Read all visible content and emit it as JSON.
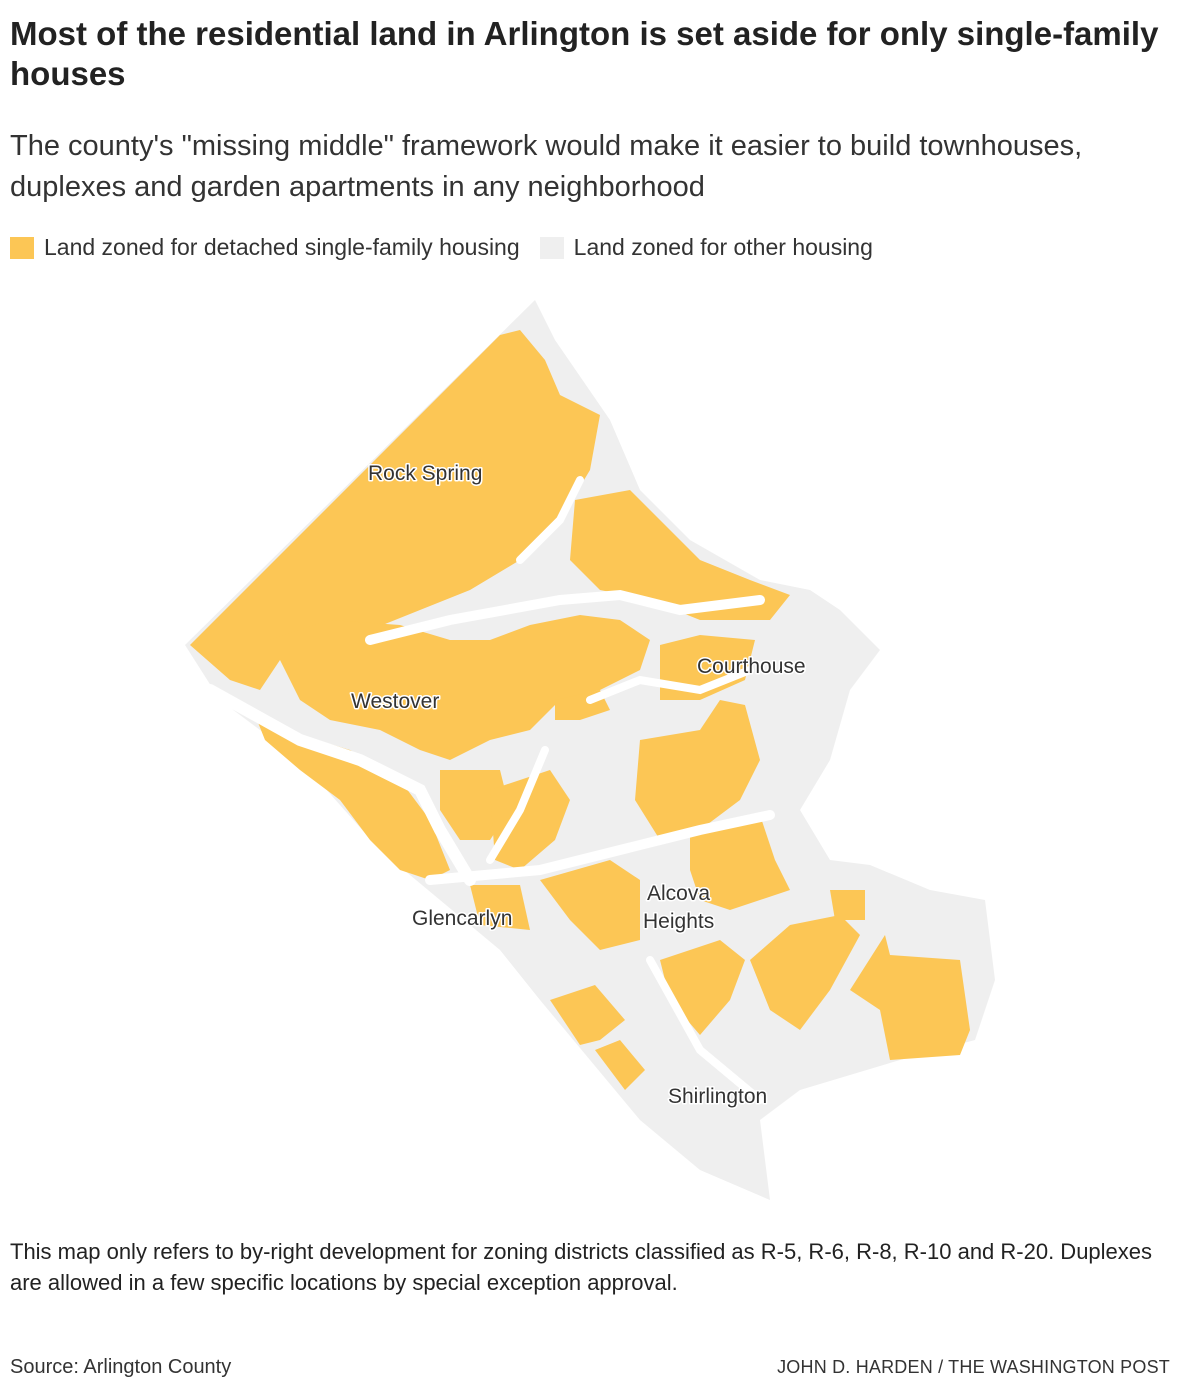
{
  "title": "Most of the residential land in Arlington is set aside for only single-family houses",
  "subtitle": "The county's \"missing middle\" framework would make it easier to build townhouses, duplexes and garden apartments in any neighborhood",
  "legend": [
    {
      "label": "Land zoned for detached single-family housing",
      "color": "#fcc655"
    },
    {
      "label": "Land zoned for other housing",
      "color": "#efefef"
    }
  ],
  "map": {
    "labels": {
      "rock_spring": "Rock Spring",
      "courthouse": "Courthouse",
      "westover": "Westover",
      "alcova_1": "Alcova",
      "alcova_2": "Heights",
      "glencarlyn": "Glencarlyn",
      "shirlington": "Shirlington"
    }
  },
  "note": "This map only refers to by-right development for zoning districts classified as R-5, R-6, R-8, R-10 and R-20. Duplexes are allowed in a few specific locations by special exception approval.",
  "source": "Source: Arlington County",
  "credit": "JOHN D. HARDEN / THE WASHINGTON POST"
}
